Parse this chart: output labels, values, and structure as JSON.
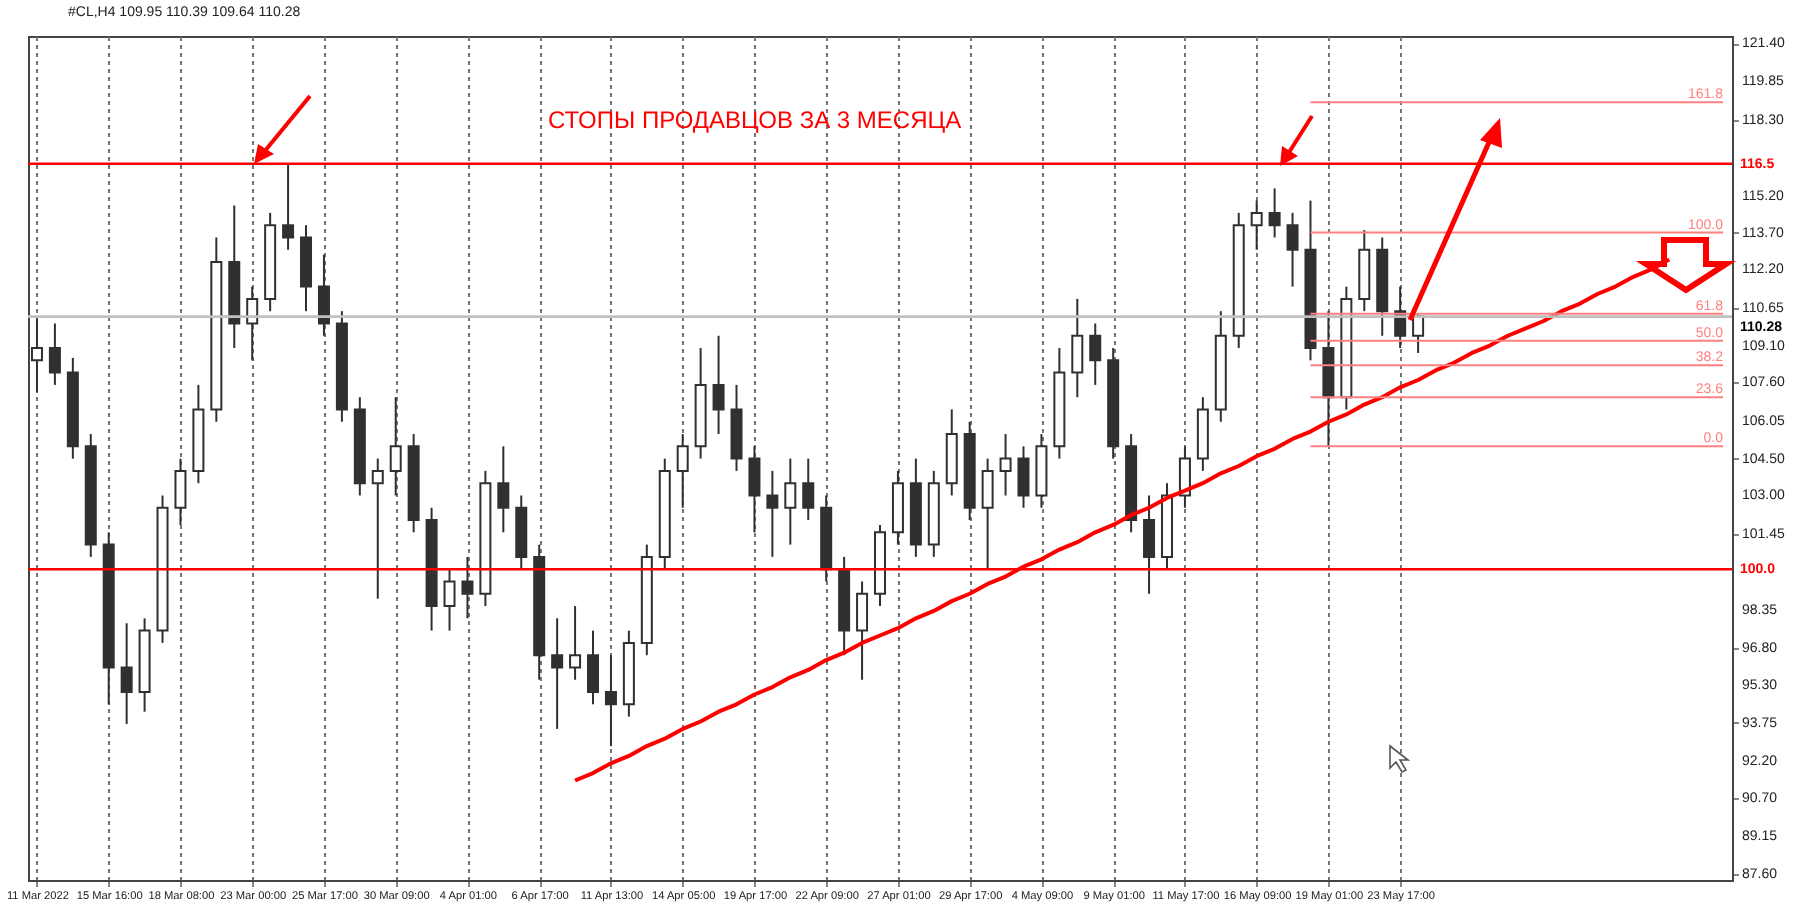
{
  "chart_data": {
    "type": "candlestick",
    "annotations": [
      "#CL,H4  109.95 110.39 109.64 110.28",
      "СТОПЫ ПРОДАВЦОВ ЗА 3 МЕСЯЦА"
    ],
    "categories": [
      "11 Mar 2022",
      null,
      null,
      null,
      "15 Mar 16:00",
      null,
      null,
      null,
      "18 Mar 08:00",
      null,
      null,
      null,
      "23 Mar 00:00",
      null,
      null,
      null,
      "25 Mar 17:00",
      null,
      null,
      null,
      "30 Mar 09:00",
      null,
      null,
      null,
      "4 Apr 01:00",
      null,
      null,
      null,
      "6 Apr 17:00",
      null,
      null,
      null,
      "11 Apr 13:00",
      null,
      null,
      null,
      "14 Apr 05:00",
      null,
      null,
      null,
      "19 Apr 17:00",
      null,
      null,
      null,
      "22 Apr 09:00",
      null,
      null,
      null,
      "27 Apr 01:00",
      null,
      null,
      null,
      "29 Apr 17:00",
      null,
      null,
      null,
      "4 May 09:00",
      null,
      null,
      null,
      "9 May 01:00",
      null,
      null,
      null,
      "11 May 17:00",
      null,
      null,
      null,
      "16 May 09:00",
      null,
      null,
      null,
      "19 May 01:00",
      null,
      null,
      null,
      "23 May 17:00",
      null,
      null,
      null,
      null,
      null,
      null,
      null,
      null,
      null,
      null,
      null,
      null,
      null,
      null,
      null,
      null,
      null,
      null
    ],
    "ylim": [
      87.35,
      121.7
    ],
    "yticks": [
      {
        "value": 87.6,
        "label": "87.60"
      },
      {
        "value": 89.15,
        "label": "89.15"
      },
      {
        "value": 90.7,
        "label": "90.70"
      },
      {
        "value": 92.2,
        "label": "92.20"
      },
      {
        "value": 93.75,
        "label": "93.75"
      },
      {
        "value": 95.3,
        "label": "95.30"
      },
      {
        "value": 96.8,
        "label": "96.80"
      },
      {
        "value": 98.35,
        "label": "98.35"
      },
      {
        "value": 101.45,
        "label": "101.45"
      },
      {
        "value": 103,
        "label": "103.00"
      },
      {
        "value": 104.5,
        "label": "104.50"
      },
      {
        "value": 106.05,
        "label": "106.05"
      },
      {
        "value": 107.6,
        "label": "107.60"
      },
      {
        "value": 109.1,
        "label": "109.10"
      },
      {
        "value": 110.65,
        "label": "110.65"
      },
      {
        "value": 112.2,
        "label": "112.20"
      },
      {
        "value": 113.7,
        "label": "113.70"
      },
      {
        "value": 115.2,
        "label": "115.20"
      },
      {
        "value": 118.3,
        "label": "118.30"
      },
      {
        "value": 119.85,
        "label": "119.85"
      },
      {
        "value": 121.4,
        "label": "121.40"
      }
    ],
    "grid": "x",
    "ref_lines": [
      {
        "axis": "y",
        "value": 116.5,
        "label": "116.5",
        "color": "#ff0000"
      },
      {
        "axis": "y",
        "value": 100.0,
        "label": "100.0",
        "color": "#ff0000"
      },
      {
        "axis": "y",
        "value": 110.28,
        "label": "110.28",
        "color": "#c0c0c0"
      }
    ],
    "series": [
      {
        "color": "#303030",
        "ohlc": [
          [
            108.5,
            110.2,
            107.2,
            109.0
          ],
          [
            109.0,
            110.0,
            107.5,
            108.0
          ],
          [
            108.0,
            108.6,
            104.5,
            105.0
          ],
          [
            105.0,
            105.5,
            100.5,
            101.0
          ],
          [
            101.0,
            101.5,
            94.5,
            96.0
          ],
          [
            96.0,
            97.8,
            93.7,
            95.0
          ],
          [
            95.0,
            98.0,
            94.2,
            97.5
          ],
          [
            97.5,
            103.0,
            97.0,
            102.5
          ],
          [
            102.5,
            104.5,
            101.8,
            104.0
          ],
          [
            104.0,
            107.5,
            103.5,
            106.5
          ],
          [
            106.5,
            113.5,
            106.0,
            112.5
          ],
          [
            112.5,
            114.8,
            109.0,
            110.0
          ],
          [
            110.0,
            111.5,
            108.5,
            111.0
          ],
          [
            111.0,
            114.5,
            110.5,
            114.0
          ],
          [
            114.0,
            116.5,
            113.0,
            113.5
          ],
          [
            113.5,
            114.0,
            110.5,
            111.5
          ],
          [
            111.5,
            112.8,
            109.5,
            110.0
          ],
          [
            110.0,
            110.5,
            106.0,
            106.5
          ],
          [
            106.5,
            107.0,
            103.0,
            103.5
          ],
          [
            103.5,
            104.5,
            98.8,
            104.0
          ],
          [
            104.0,
            107.0,
            103.0,
            105.0
          ],
          [
            105.0,
            105.5,
            101.5,
            102.0
          ],
          [
            102.0,
            102.5,
            97.5,
            98.5
          ],
          [
            98.5,
            100.0,
            97.5,
            99.5
          ],
          [
            99.5,
            100.5,
            98.0,
            99.0
          ],
          [
            99.0,
            104.0,
            98.5,
            103.5
          ],
          [
            103.5,
            105.0,
            101.5,
            102.5
          ],
          [
            102.5,
            103.0,
            100.0,
            100.5
          ],
          [
            100.5,
            101.0,
            95.5,
            96.5
          ],
          [
            96.5,
            98.0,
            93.5,
            96.0
          ],
          [
            96.0,
            98.5,
            95.5,
            96.5
          ],
          [
            96.5,
            97.5,
            94.5,
            95.0
          ],
          [
            95.0,
            96.5,
            92.8,
            94.5
          ],
          [
            94.5,
            97.5,
            94.0,
            97.0
          ],
          [
            97.0,
            101.0,
            96.5,
            100.5
          ],
          [
            100.5,
            104.5,
            100.0,
            104.0
          ],
          [
            104.0,
            105.5,
            102.5,
            105.0
          ],
          [
            105.0,
            109.0,
            104.5,
            107.5
          ],
          [
            107.5,
            109.5,
            105.5,
            106.5
          ],
          [
            106.5,
            107.5,
            104.0,
            104.5
          ],
          [
            104.5,
            105.0,
            101.5,
            103.0
          ],
          [
            103.0,
            104.0,
            100.5,
            102.5
          ],
          [
            102.5,
            104.5,
            101.0,
            103.5
          ],
          [
            103.5,
            104.5,
            102.0,
            102.5
          ],
          [
            102.5,
            103.0,
            99.5,
            100.0
          ],
          [
            100.0,
            100.5,
            96.5,
            97.5
          ],
          [
            97.5,
            99.5,
            95.5,
            99.0
          ],
          [
            99.0,
            101.8,
            98.5,
            101.5
          ],
          [
            101.5,
            104.0,
            101.0,
            103.5
          ],
          [
            103.5,
            104.5,
            100.5,
            101.0
          ],
          [
            101.0,
            104.0,
            100.5,
            103.5
          ],
          [
            103.5,
            106.5,
            103.0,
            105.5
          ],
          [
            105.5,
            106.0,
            102.0,
            102.5
          ],
          [
            102.5,
            104.5,
            100.0,
            104.0
          ],
          [
            104.0,
            105.5,
            103.0,
            104.5
          ],
          [
            104.5,
            105.0,
            102.5,
            103.0
          ],
          [
            103.0,
            105.5,
            102.5,
            105.0
          ],
          [
            105.0,
            109.0,
            104.5,
            108.0
          ],
          [
            108.0,
            111.0,
            107.0,
            109.5
          ],
          [
            109.5,
            110.0,
            107.5,
            108.5
          ],
          [
            108.5,
            109.0,
            104.5,
            105.0
          ],
          [
            105.0,
            105.5,
            101.5,
            102.0
          ],
          [
            102.0,
            103.0,
            99.0,
            100.5
          ],
          [
            100.5,
            103.5,
            100.0,
            103.0
          ],
          [
            103.0,
            105.0,
            102.5,
            104.5
          ],
          [
            104.5,
            107.0,
            104.0,
            106.5
          ],
          [
            106.5,
            110.5,
            106.0,
            109.5
          ],
          [
            109.5,
            114.5,
            109.0,
            114.0
          ],
          [
            114.0,
            115.0,
            113.0,
            114.5
          ],
          [
            114.5,
            115.5,
            113.5,
            114.0
          ],
          [
            114.0,
            114.5,
            111.5,
            113.0
          ],
          [
            113.0,
            115.0,
            108.5,
            109.0
          ],
          [
            109.0,
            110.5,
            105.0,
            107.0
          ],
          [
            107.0,
            111.5,
            106.5,
            111.0
          ],
          [
            111.0,
            113.8,
            110.5,
            113.0
          ],
          [
            113.0,
            113.5,
            109.5,
            110.5
          ],
          [
            110.5,
            111.5,
            109.0,
            109.5
          ],
          [
            109.5,
            110.39,
            108.8,
            110.28
          ],
          null,
          null,
          null,
          null,
          null,
          null,
          null,
          null,
          null,
          null,
          null,
          null,
          null,
          null,
          null,
          null,
          null
        ]
      },
      {
        "type": "line",
        "color": "#ff0000",
        "values": [
          null,
          null,
          null,
          null,
          null,
          null,
          null,
          null,
          null,
          null,
          null,
          null,
          null,
          null,
          null,
          null,
          null,
          null,
          null,
          null,
          null,
          null,
          null,
          null,
          null,
          null,
          null,
          null,
          null,
          null,
          91.4,
          91.7,
          92.1,
          92.4,
          92.8,
          93.1,
          93.5,
          93.8,
          94.2,
          94.5,
          94.9,
          95.2,
          95.6,
          95.9,
          96.3,
          96.6,
          97.0,
          97.3,
          97.6,
          98.0,
          98.3,
          98.7,
          99.0,
          99.4,
          99.7,
          100.1,
          100.4,
          100.8,
          101.1,
          101.5,
          101.8,
          102.2,
          102.5,
          102.9,
          103.2,
          103.5,
          103.9,
          104.2,
          104.6,
          104.9,
          105.3,
          105.6,
          106.0,
          106.3,
          106.7,
          107.0,
          107.4,
          107.7,
          108.1,
          108.4,
          108.8,
          109.1,
          109.5,
          109.8,
          110.1,
          110.5,
          110.8,
          111.2,
          111.5,
          111.9,
          112.2,
          112.6,
          null,
          null,
          null
        ]
      },
      {
        "type": "line",
        "name": "161.8",
        "color": "#ff8080",
        "values": [
          null,
          null,
          null,
          null,
          null,
          null,
          null,
          null,
          null,
          null,
          null,
          null,
          null,
          null,
          null,
          null,
          null,
          null,
          null,
          null,
          null,
          null,
          null,
          null,
          null,
          null,
          null,
          null,
          null,
          null,
          null,
          null,
          null,
          null,
          null,
          null,
          null,
          null,
          null,
          null,
          null,
          null,
          null,
          null,
          null,
          null,
          null,
          null,
          null,
          null,
          null,
          null,
          null,
          null,
          null,
          null,
          null,
          null,
          null,
          null,
          null,
          null,
          null,
          null,
          null,
          null,
          null,
          null,
          null,
          null,
          null,
          119.0,
          119.0,
          119.0,
          119.0,
          119.0,
          119.0,
          119.0,
          119.0,
          119.0,
          119.0,
          119.0,
          119.0,
          119.0,
          119.0,
          119.0,
          119.0,
          119.0,
          119.0,
          119.0,
          119.0,
          119.0,
          119.0,
          119.0,
          119.0
        ]
      },
      {
        "type": "line",
        "name": "100.0",
        "color": "#ff8080",
        "values": [
          null,
          null,
          null,
          null,
          null,
          null,
          null,
          null,
          null,
          null,
          null,
          null,
          null,
          null,
          null,
          null,
          null,
          null,
          null,
          null,
          null,
          null,
          null,
          null,
          null,
          null,
          null,
          null,
          null,
          null,
          null,
          null,
          null,
          null,
          null,
          null,
          null,
          null,
          null,
          null,
          null,
          null,
          null,
          null,
          null,
          null,
          null,
          null,
          null,
          null,
          null,
          null,
          null,
          null,
          null,
          null,
          null,
          null,
          null,
          null,
          null,
          null,
          null,
          null,
          null,
          null,
          null,
          null,
          null,
          null,
          null,
          113.7,
          113.7,
          113.7,
          113.7,
          113.7,
          113.7,
          113.7,
          113.7,
          113.7,
          113.7,
          113.7,
          113.7,
          113.7,
          113.7,
          113.7,
          113.7,
          113.7,
          113.7,
          113.7,
          113.7,
          113.7,
          113.7,
          113.7,
          113.7
        ]
      },
      {
        "type": "line",
        "name": "61.8",
        "color": "#ff8080",
        "values": [
          null,
          null,
          null,
          null,
          null,
          null,
          null,
          null,
          null,
          null,
          null,
          null,
          null,
          null,
          null,
          null,
          null,
          null,
          null,
          null,
          null,
          null,
          null,
          null,
          null,
          null,
          null,
          null,
          null,
          null,
          null,
          null,
          null,
          null,
          null,
          null,
          null,
          null,
          null,
          null,
          null,
          null,
          null,
          null,
          null,
          null,
          null,
          null,
          null,
          null,
          null,
          null,
          null,
          null,
          null,
          null,
          null,
          null,
          null,
          null,
          null,
          null,
          null,
          null,
          null,
          null,
          null,
          null,
          null,
          null,
          null,
          110.4,
          110.4,
          110.4,
          110.4,
          110.4,
          110.4,
          110.4,
          110.4,
          110.4,
          110.4,
          110.4,
          110.4,
          110.4,
          110.4,
          110.4,
          110.4,
          110.4,
          110.4,
          110.4,
          110.4,
          110.4,
          110.4,
          110.4,
          110.4
        ]
      },
      {
        "type": "line",
        "name": "50.0",
        "color": "#ff8080",
        "values": [
          null,
          null,
          null,
          null,
          null,
          null,
          null,
          null,
          null,
          null,
          null,
          null,
          null,
          null,
          null,
          null,
          null,
          null,
          null,
          null,
          null,
          null,
          null,
          null,
          null,
          null,
          null,
          null,
          null,
          null,
          null,
          null,
          null,
          null,
          null,
          null,
          null,
          null,
          null,
          null,
          null,
          null,
          null,
          null,
          null,
          null,
          null,
          null,
          null,
          null,
          null,
          null,
          null,
          null,
          null,
          null,
          null,
          null,
          null,
          null,
          null,
          null,
          null,
          null,
          null,
          null,
          null,
          null,
          null,
          null,
          null,
          109.3,
          109.3,
          109.3,
          109.3,
          109.3,
          109.3,
          109.3,
          109.3,
          109.3,
          109.3,
          109.3,
          109.3,
          109.3,
          109.3,
          109.3,
          109.3,
          109.3,
          109.3,
          109.3,
          109.3,
          109.3,
          109.3,
          109.3,
          109.3
        ]
      },
      {
        "type": "line",
        "name": "38.2",
        "color": "#ff8080",
        "values": [
          null,
          null,
          null,
          null,
          null,
          null,
          null,
          null,
          null,
          null,
          null,
          null,
          null,
          null,
          null,
          null,
          null,
          null,
          null,
          null,
          null,
          null,
          null,
          null,
          null,
          null,
          null,
          null,
          null,
          null,
          null,
          null,
          null,
          null,
          null,
          null,
          null,
          null,
          null,
          null,
          null,
          null,
          null,
          null,
          null,
          null,
          null,
          null,
          null,
          null,
          null,
          null,
          null,
          null,
          null,
          null,
          null,
          null,
          null,
          null,
          null,
          null,
          null,
          null,
          null,
          null,
          null,
          null,
          null,
          null,
          null,
          108.3,
          108.3,
          108.3,
          108.3,
          108.3,
          108.3,
          108.3,
          108.3,
          108.3,
          108.3,
          108.3,
          108.3,
          108.3,
          108.3,
          108.3,
          108.3,
          108.3,
          108.3,
          108.3,
          108.3,
          108.3,
          108.3,
          108.3,
          108.3
        ]
      },
      {
        "type": "line",
        "name": "23.6",
        "color": "#ff8080",
        "values": [
          null,
          null,
          null,
          null,
          null,
          null,
          null,
          null,
          null,
          null,
          null,
          null,
          null,
          null,
          null,
          null,
          null,
          null,
          null,
          null,
          null,
          null,
          null,
          null,
          null,
          null,
          null,
          null,
          null,
          null,
          null,
          null,
          null,
          null,
          null,
          null,
          null,
          null,
          null,
          null,
          null,
          null,
          null,
          null,
          null,
          null,
          null,
          null,
          null,
          null,
          null,
          null,
          null,
          null,
          null,
          null,
          null,
          null,
          null,
          null,
          null,
          null,
          null,
          null,
          null,
          null,
          null,
          null,
          null,
          null,
          null,
          107.0,
          107.0,
          107.0,
          107.0,
          107.0,
          107.0,
          107.0,
          107.0,
          107.0,
          107.0,
          107.0,
          107.0,
          107.0,
          107.0,
          107.0,
          107.0,
          107.0,
          107.0,
          107.0,
          107.0,
          107.0,
          107.0,
          107.0,
          107.0
        ]
      },
      {
        "type": "line",
        "name": "0.0",
        "color": "#ff8080",
        "values": [
          null,
          null,
          null,
          null,
          null,
          null,
          null,
          null,
          null,
          null,
          null,
          null,
          null,
          null,
          null,
          null,
          null,
          null,
          null,
          null,
          null,
          null,
          null,
          null,
          null,
          null,
          null,
          null,
          null,
          null,
          null,
          null,
          null,
          null,
          null,
          null,
          null,
          null,
          null,
          null,
          null,
          null,
          null,
          null,
          null,
          null,
          null,
          null,
          null,
          null,
          null,
          null,
          null,
          null,
          null,
          null,
          null,
          null,
          null,
          null,
          null,
          null,
          null,
          null,
          null,
          null,
          null,
          null,
          null,
          null,
          null,
          105.0,
          105.0,
          105.0,
          105.0,
          105.0,
          105.0,
          105.0,
          105.0,
          105.0,
          105.0,
          105.0,
          105.0,
          105.0,
          105.0,
          105.0,
          105.0,
          105.0,
          105.0,
          105.0,
          105.0,
          105.0,
          105.0,
          105.0,
          105.0
        ]
      }
    ]
  }
}
